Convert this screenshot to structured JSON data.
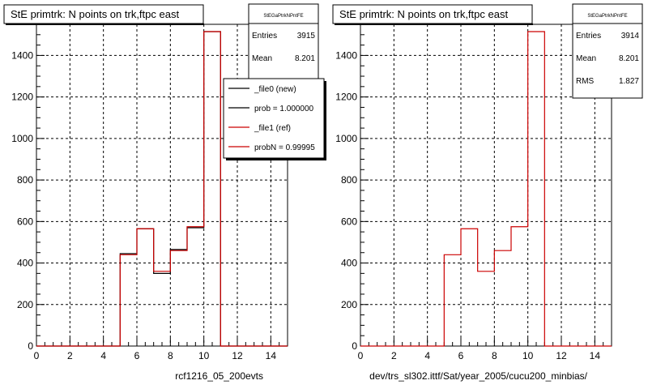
{
  "chart_data": [
    {
      "type": "histogram",
      "title": "StE primtrk: N points on trk,ftpc east",
      "xlabel": "rcf1216_05_200evts",
      "xlim": [
        0,
        15
      ],
      "ylim": [
        0,
        1550
      ],
      "x_ticks": [
        0,
        2,
        4,
        6,
        8,
        10,
        12,
        14
      ],
      "y_ticks": [
        0,
        200,
        400,
        600,
        800,
        1000,
        1200,
        1400
      ],
      "grid": true,
      "bin_edges": [
        0,
        1,
        2,
        3,
        4,
        5,
        6,
        7,
        8,
        9,
        10,
        11,
        12,
        13,
        14,
        15
      ],
      "series": [
        {
          "name": "_file0 (new)",
          "color": "#000000",
          "values": [
            0,
            0,
            0,
            0,
            0,
            445,
            565,
            350,
            465,
            570,
            1515,
            0,
            0,
            0,
            0
          ]
        },
        {
          "name": "_file1 (ref)",
          "color": "#cc0000",
          "values": [
            0,
            0,
            0,
            0,
            0,
            440,
            565,
            360,
            460,
            575,
            1515,
            0,
            0,
            0,
            0
          ]
        }
      ],
      "stats": {
        "name": "StEGaPtrkNPntFE",
        "rows": [
          {
            "label": "Entries",
            "value": "3915"
          },
          {
            "label": "Mean",
            "value": "8.201"
          }
        ]
      },
      "legend": {
        "position": "top-right",
        "entries": [
          {
            "label": "_file0 (new)",
            "color": "#000000"
          },
          {
            "label": "prob = 1.000000",
            "color": "#000000"
          },
          {
            "label": "_file1 (ref)",
            "color": "#cc0000"
          },
          {
            "label": "probN = 0.99995",
            "color": "#cc0000"
          }
        ]
      }
    },
    {
      "type": "histogram",
      "title": "StE primtrk: N points on trk,ftpc east",
      "xlabel": "dev/trs_sl302.ittf/Sat/year_2005/cucu200_minbias/",
      "xlim": [
        0,
        15
      ],
      "ylim": [
        0,
        1550
      ],
      "x_ticks": [
        0,
        2,
        4,
        6,
        8,
        10,
        12,
        14
      ],
      "y_ticks": [
        0,
        200,
        400,
        600,
        800,
        1000,
        1200,
        1400
      ],
      "grid": true,
      "bin_edges": [
        0,
        1,
        2,
        3,
        4,
        5,
        6,
        7,
        8,
        9,
        10,
        11,
        12,
        13,
        14,
        15
      ],
      "series": [
        {
          "name": "",
          "color": "#cc0000",
          "values": [
            0,
            0,
            0,
            0,
            0,
            440,
            565,
            360,
            460,
            575,
            1515,
            0,
            0,
            0,
            0
          ]
        }
      ],
      "stats": {
        "name": "StEGaPtrkNPntFE",
        "rows": [
          {
            "label": "Entries",
            "value": "3914"
          },
          {
            "label": "Mean",
            "value": "8.201"
          },
          {
            "label": "RMS",
            "value": "1.827"
          }
        ]
      }
    }
  ]
}
